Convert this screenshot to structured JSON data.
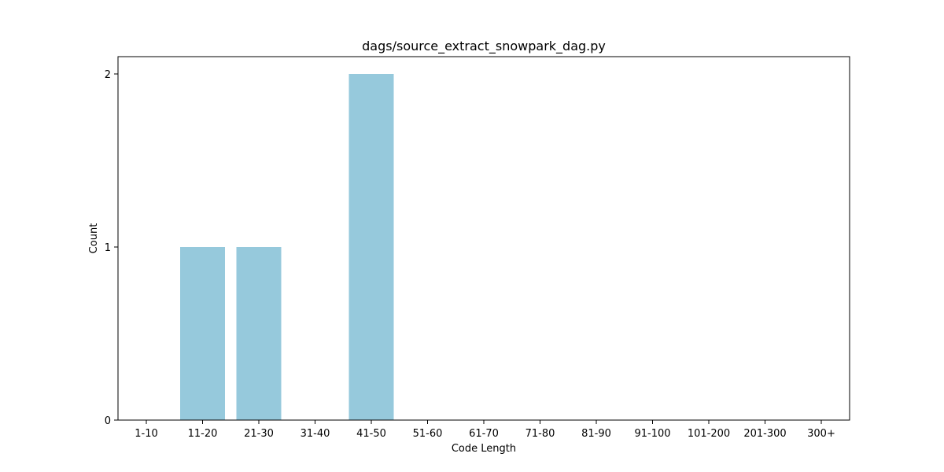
{
  "chart_data": {
    "type": "bar",
    "title": "dags/source_extract_snowpark_dag.py",
    "xlabel": "Code Length",
    "ylabel": "Count",
    "categories": [
      "1-10",
      "11-20",
      "21-30",
      "31-40",
      "41-50",
      "51-60",
      "61-70",
      "71-80",
      "81-90",
      "91-100",
      "101-200",
      "201-300",
      "300+"
    ],
    "values": [
      0,
      1,
      1,
      0,
      2,
      0,
      0,
      0,
      0,
      0,
      0,
      0,
      0
    ],
    "ylim": [
      0,
      2.1
    ],
    "yticks": [
      "0",
      "1",
      "2"
    ],
    "bar_color": "#96c9dc",
    "grid": false,
    "legend": "none"
  }
}
